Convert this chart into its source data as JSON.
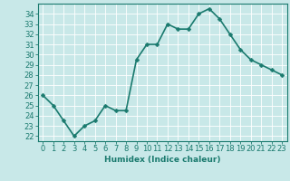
{
  "x": [
    0,
    1,
    2,
    3,
    4,
    5,
    6,
    7,
    8,
    9,
    10,
    11,
    12,
    13,
    14,
    15,
    16,
    17,
    18,
    19,
    20,
    21,
    22,
    23
  ],
  "y": [
    26,
    25,
    23.5,
    22,
    23,
    23.5,
    25,
    24.5,
    24.5,
    29.5,
    31,
    31,
    33,
    32.5,
    32.5,
    34,
    34.5,
    33.5,
    32,
    30.5,
    29.5,
    29,
    28.5,
    28
  ],
  "line_color": "#1a7a6e",
  "marker_color": "#1a7a6e",
  "bg_color": "#c8e8e8",
  "grid_color": "#ffffff",
  "xlabel": "Humidex (Indice chaleur)",
  "xlim": [
    -0.5,
    23.5
  ],
  "ylim": [
    21.5,
    35
  ],
  "yticks": [
    22,
    23,
    24,
    25,
    26,
    27,
    28,
    29,
    30,
    31,
    32,
    33,
    34
  ],
  "xticks": [
    0,
    1,
    2,
    3,
    4,
    5,
    6,
    7,
    8,
    9,
    10,
    11,
    12,
    13,
    14,
    15,
    16,
    17,
    18,
    19,
    20,
    21,
    22,
    23
  ],
  "xlabel_fontsize": 6.5,
  "tick_fontsize": 6,
  "line_width": 1.2,
  "marker_size": 2.5
}
